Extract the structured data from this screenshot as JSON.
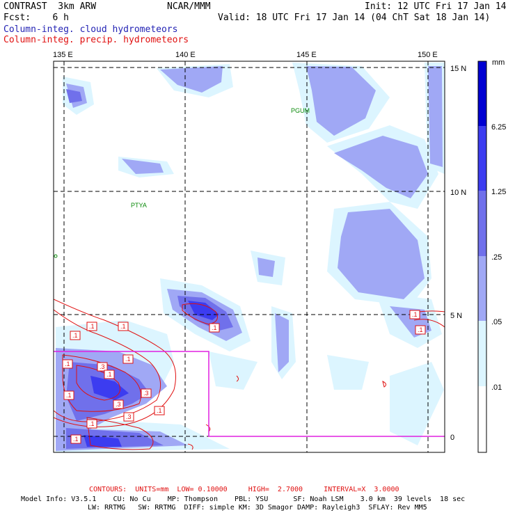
{
  "header": {
    "model": "CONTRAST  3km ARW",
    "org": "NCAR/MMM",
    "init": "Init: 12 UTC Fri 17 Jan 14",
    "fcst": "Fcst:    6 h",
    "valid": "Valid: 18 UTC Fri 17 Jan 14 (04 ChT Sat 18 Jan 14)",
    "field1": "Column-integ. cloud hydrometeors",
    "field2": "Column-integ. precip. hydrometeors"
  },
  "map": {
    "lon_labels": [
      "135 E",
      "140 E",
      "145 E",
      "150 E"
    ],
    "lat_labels": [
      "15 N",
      "10 N",
      "5 N",
      "0"
    ],
    "stations": [
      "PGUM",
      "PTYA"
    ],
    "contour_labels": [
      ".1",
      ".1",
      ".1",
      ".1",
      ".1",
      ".3",
      ".1",
      ".3",
      ".1",
      ".3",
      ".1",
      ".1",
      ".3",
      ".1",
      ".1",
      ".1",
      ".1"
    ]
  },
  "colorbar": {
    "unit": "mm",
    "labels": [
      "6.25",
      "1.25",
      ".25",
      ".05",
      ".01"
    ],
    "colors": [
      "#0000d2",
      "#3c3cf0",
      "#7070eb",
      "#a0a8f5",
      "#dcf5ff",
      "#ffffff"
    ]
  },
  "footer": {
    "contours": "CONTOURS:  UNITS=mm  LOW= 0.10000     HIGH=  2.7000     INTERVAL=X  3.0000",
    "info1": "Model Info: V3.5.1    CU: No Cu    MP: Thompson    PBL: YSU      SF: Noah LSM    3.0 km  39 levels  18 sec",
    "info2": "LW: RRTMG   SW: RRTMG  DIFF: simple KM: 3D Smagor DAMP: Rayleigh3  SFLAY: Rev MM5"
  }
}
